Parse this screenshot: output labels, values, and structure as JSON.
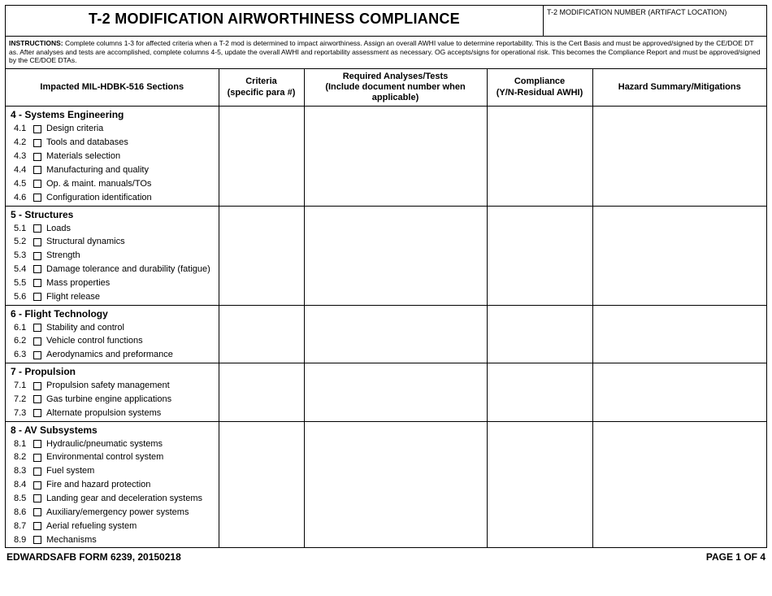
{
  "title": "T-2 MODIFICATION AIRWORTHINESS COMPLIANCE",
  "mod_number_label": "T-2 MODIFICATION NUMBER (ARTIFACT LOCATION)",
  "instructions_label": "INSTRUCTIONS:",
  "instructions_text": "Complete columns 1-3 for affected criteria when a T-2 mod is determined to impact airworthiness. Assign an overall AWHI value to determine reportability. This is the Cert Basis and must be approved/signed by the CE/DOE DT as. After analyses and tests are accomplished, complete columns 4-5, update the overall AWHI and reportability assessment as necessary. OG accepts/signs for operational risk. This becomes the Compliance Report and must be approved/signed by the CE/DOE DTAs.",
  "headers": {
    "sections": "Impacted MIL-HDBK-516 Sections",
    "criteria_l1": "Criteria",
    "criteria_l2": "(specific para #)",
    "tests_l1": "Required Analyses/Tests",
    "tests_l2": "(Include document number when applicable)",
    "compliance_l1": "Compliance",
    "compliance_l2": "(Y/N-Residual AWHI)",
    "hazard": "Hazard Summary/Mitigations"
  },
  "sections": [
    {
      "num": "4",
      "title": "Systems Engineering",
      "items": [
        {
          "n": "4.1",
          "label": "Design criteria"
        },
        {
          "n": "4.2",
          "label": "Tools and databases"
        },
        {
          "n": "4.3",
          "label": "Materials selection"
        },
        {
          "n": "4.4",
          "label": "Manufacturing and quality"
        },
        {
          "n": "4.5",
          "label": "Op. & maint. manuals/TOs"
        },
        {
          "n": "4.6",
          "label": "Configuration identification"
        }
      ]
    },
    {
      "num": "5",
      "title": "Structures",
      "items": [
        {
          "n": "5.1",
          "label": "Loads"
        },
        {
          "n": "5.2",
          "label": "Structural dynamics"
        },
        {
          "n": "5.3",
          "label": "Strength"
        },
        {
          "n": "5.4",
          "label": "Damage tolerance and durability (fatigue)"
        },
        {
          "n": "5.5",
          "label": "Mass properties"
        },
        {
          "n": "5.6",
          "label": "Flight release"
        }
      ]
    },
    {
      "num": "6",
      "title": "Flight Technology",
      "items": [
        {
          "n": "6.1",
          "label": "Stability and control"
        },
        {
          "n": "6.2",
          "label": "Vehicle control functions"
        },
        {
          "n": "6.3",
          "label": "Aerodynamics and preformance"
        }
      ]
    },
    {
      "num": "7",
      "title": "Propulsion",
      "items": [
        {
          "n": "7.1",
          "label": "Propulsion safety management"
        },
        {
          "n": "7.2",
          "label": "Gas turbine engine applications"
        },
        {
          "n": "7.3",
          "label": "Alternate propulsion systems"
        }
      ]
    },
    {
      "num": "8",
      "title": "AV Subsystems",
      "items": [
        {
          "n": "8.1",
          "label": "Hydraulic/pneumatic systems"
        },
        {
          "n": "8.2",
          "label": "Environmental control system"
        },
        {
          "n": "8.3",
          "label": "Fuel system"
        },
        {
          "n": "8.4",
          "label": "Fire and hazard protection"
        },
        {
          "n": "8.5",
          "label": "Landing gear and deceleration systems"
        },
        {
          "n": "8.6",
          "label": "Auxiliary/emergency power systems"
        },
        {
          "n": "8.7",
          "label": "Aerial refueling system"
        },
        {
          "n": "8.9",
          "label": "Mechanisms"
        }
      ]
    }
  ],
  "footer_left": "EDWARDSAFB FORM 6239, 20150218",
  "footer_right": "PAGE 1 OF 4"
}
